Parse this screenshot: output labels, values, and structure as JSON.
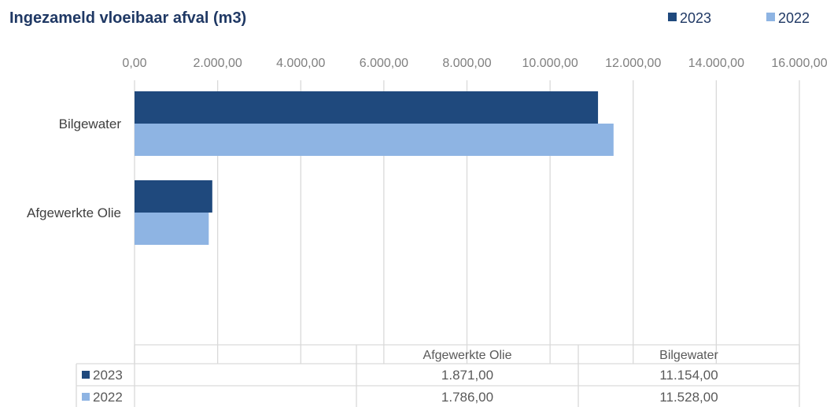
{
  "chart_data": {
    "type": "bar",
    "orientation": "horizontal",
    "title": "Ingezameld vloeibaar afval (m3)",
    "categories": [
      "Bilgewater",
      "Afgewerkte Olie"
    ],
    "series": [
      {
        "name": "2023",
        "values": [
          11154.0,
          1871.0
        ],
        "color": "#1f497d"
      },
      {
        "name": "2022",
        "values": [
          11528.0,
          1786.0
        ],
        "color": "#8eb4e3"
      }
    ],
    "xlim": [
      0,
      16000
    ],
    "xticks": [
      0,
      2000,
      4000,
      6000,
      8000,
      10000,
      12000,
      14000,
      16000
    ],
    "xtick_labels": [
      "0,00",
      "2.000,00",
      "4.000,00",
      "6.000,00",
      "8.000,00",
      "10.000,00",
      "12.000,00",
      "14.000,00",
      "16.000,00"
    ],
    "grid": true,
    "legend": {
      "placement": "top-right",
      "entries": [
        "2023",
        "2022"
      ]
    },
    "data_table": {
      "columns": [
        "Afgewerkte Olie",
        "Bilgewater"
      ],
      "rows": [
        {
          "series": "2023",
          "cells": [
            "1.871,00",
            "11.154,00"
          ],
          "color": "#1f497d"
        },
        {
          "series": "2022",
          "cells": [
            "1.786,00",
            "11.528,00"
          ],
          "color": "#8eb4e3"
        }
      ]
    }
  }
}
